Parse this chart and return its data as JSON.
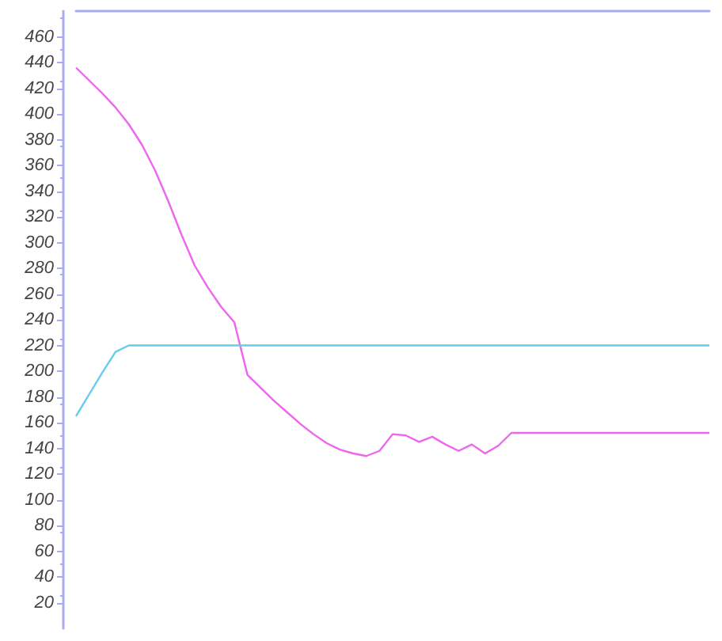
{
  "chart_data": {
    "type": "line",
    "categories": [
      null,
      null,
      null,
      null,
      null,
      null,
      null,
      null,
      null,
      null,
      null,
      null,
      null,
      null,
      null,
      null,
      null,
      null,
      null,
      null,
      null,
      null,
      null,
      null,
      null,
      null,
      null,
      null,
      null,
      null,
      null,
      null,
      null,
      null,
      null,
      null,
      null,
      null,
      null,
      null,
      null,
      null,
      null,
      null,
      null,
      null,
      null,
      null,
      null
    ],
    "series": [
      {
        "color": "#ee66ee",
        "values": [
          436,
          426,
          416,
          405,
          392,
          376,
          356,
          332,
          306,
          282,
          265,
          250,
          238,
          197,
          187,
          177,
          168,
          159,
          151,
          144,
          139,
          136,
          134,
          138,
          151,
          150,
          145,
          149,
          143,
          138,
          143,
          136,
          142,
          152,
          152,
          152,
          152,
          152,
          152,
          152,
          152,
          152,
          152,
          152,
          152,
          152,
          152,
          152,
          152
        ]
      },
      {
        "color": "#66ccee",
        "values": [
          165,
          182,
          199,
          215,
          220,
          220,
          220,
          220,
          220,
          220,
          220,
          220,
          220,
          220,
          220,
          220,
          220,
          220,
          220,
          220,
          220,
          220,
          220,
          220,
          220,
          220,
          220,
          220,
          220,
          220,
          220,
          220,
          220,
          220,
          220,
          220,
          220,
          220,
          220,
          220,
          220,
          220,
          220,
          220,
          220,
          220,
          220,
          220,
          220
        ]
      }
    ],
    "ylim": [
      0,
      480
    ],
    "yticks": [
      20,
      40,
      60,
      80,
      100,
      120,
      140,
      160,
      180,
      200,
      220,
      240,
      260,
      280,
      300,
      320,
      340,
      360,
      380,
      400,
      420,
      440,
      460
    ],
    "grid": false,
    "marker": "none",
    "line_style": "solid"
  }
}
